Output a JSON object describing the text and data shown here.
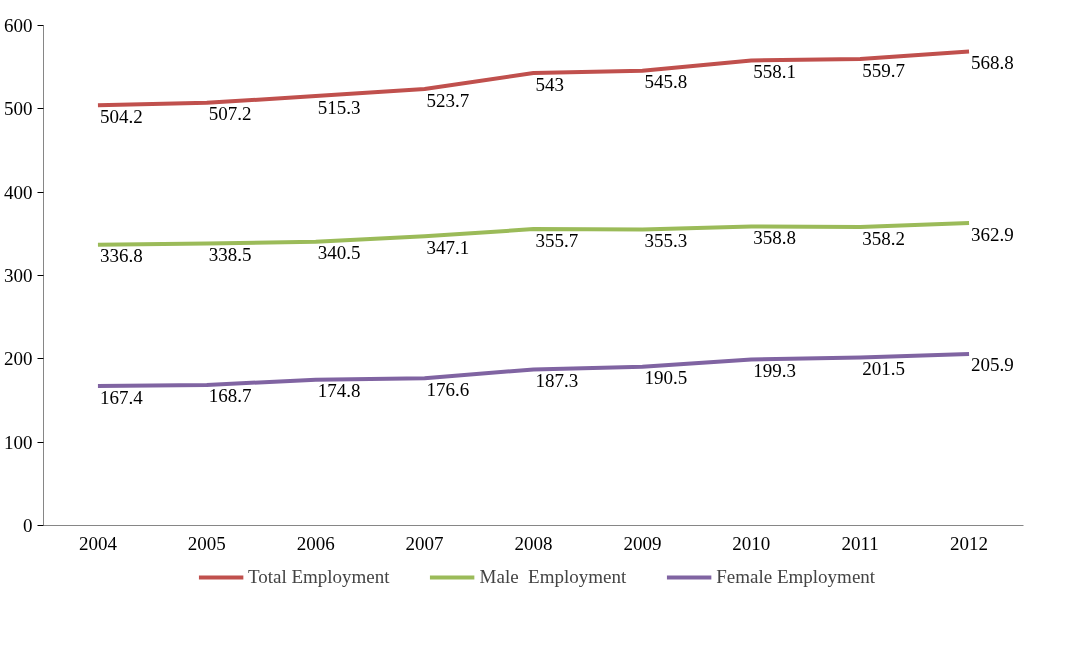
{
  "chart_data": {
    "type": "line",
    "categories": [
      "2004",
      "2005",
      "2006",
      "2007",
      "2008",
      "2009",
      "2010",
      "2011",
      "2012"
    ],
    "series": [
      {
        "name": "Total Employment",
        "color": "#c0504d",
        "values": [
          504.2,
          507.2,
          515.3,
          523.7,
          543,
          545.8,
          558.1,
          559.7,
          568.8
        ]
      },
      {
        "name": "Male  Employment",
        "color": "#9bbb59",
        "values": [
          336.8,
          338.5,
          340.5,
          347.1,
          355.7,
          355.3,
          358.8,
          358.2,
          362.9
        ]
      },
      {
        "name": "Female Employment",
        "color": "#8064a2",
        "values": [
          167.4,
          168.7,
          174.8,
          176.6,
          187.3,
          190.5,
          199.3,
          201.5,
          205.9
        ]
      }
    ],
    "ylim": [
      0,
      600
    ],
    "yticks": [
      0,
      100,
      200,
      300,
      400,
      500,
      600
    ],
    "grid": false,
    "legend": "bottom",
    "data_labels": true,
    "marker": "none",
    "line_style": "solid"
  }
}
